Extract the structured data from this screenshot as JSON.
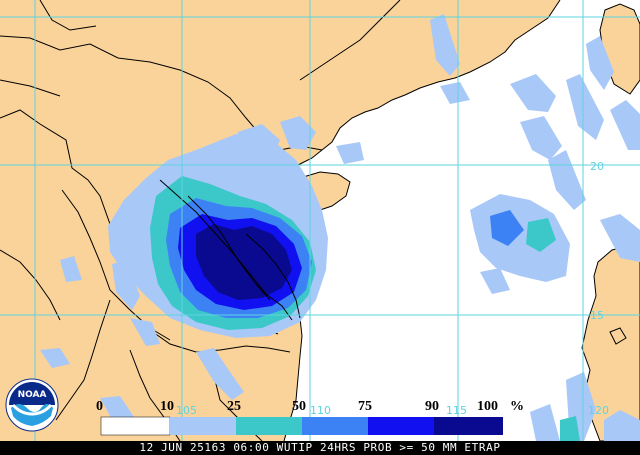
{
  "colors": {
    "land": "#fad39a",
    "ocean": "#ffffff",
    "grid": "#5fd3e0",
    "border": "#000000",
    "prob_10_25": "#a8c8f8",
    "prob_25_50": "#3cc8c8",
    "prob_50_75": "#3c82f5",
    "prob_75_90": "#1010f0",
    "prob_90_100": "#0a0a90"
  },
  "legend": {
    "ticks": [
      "0",
      "10",
      "25",
      "50",
      "75",
      "90",
      "100"
    ],
    "unit": "%"
  },
  "grid_labels": {
    "lon_105": "105",
    "lon_110": "110",
    "lon_115": "115",
    "lon_120": "120",
    "lat_20": "20",
    "lat_15": "15"
  },
  "footer": {
    "text": "12 JUN 25163 06:00 WUTIP 24HRS PROB >= 50 MM ETRAP"
  },
  "logo": {
    "text": "NOAA",
    "icon": "noaa-logo"
  }
}
